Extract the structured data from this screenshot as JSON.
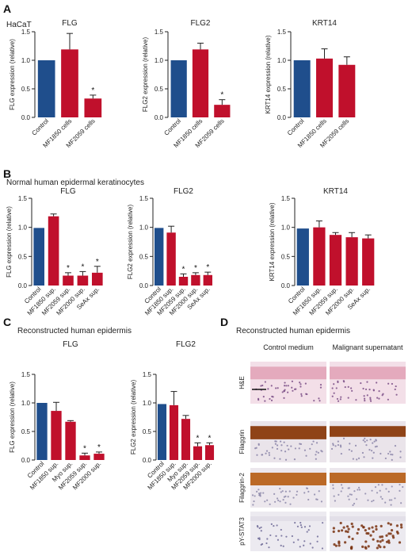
{
  "panels": [
    {
      "letter": "A",
      "subtitle": "HaCaT"
    },
    {
      "letter": "B",
      "subtitle": "Normal human epidermal keratinocytes"
    },
    {
      "letter": "C",
      "subtitle": "Reconstructed human epidermis"
    },
    {
      "letter": "D",
      "subtitle": "Reconstructed human epidermis"
    }
  ],
  "colors": {
    "control": "#1f4e8c",
    "treated": "#c0102c",
    "error": "#222222"
  },
  "chart_data": [
    {
      "id": "A1",
      "panel": "A",
      "type": "bar",
      "title": "FLG",
      "ylabel": "FLG expression (relative)",
      "ylim": [
        0,
        1.5
      ],
      "yticks": [
        "0.0",
        "0.5",
        "1.0",
        "1.5"
      ],
      "categories": [
        "Control",
        "MF1850 cells",
        "MF2059 cells"
      ],
      "values": [
        1.0,
        1.19,
        0.33
      ],
      "errors": [
        0,
        0.28,
        0.06
      ],
      "significant": [
        false,
        false,
        true
      ]
    },
    {
      "id": "A2",
      "panel": "A",
      "type": "bar",
      "title": "FLG2",
      "ylabel": "FLG2 expression (relative)",
      "ylim": [
        0,
        1.5
      ],
      "yticks": [
        "0.0",
        "0.5",
        "1.0",
        "1.5"
      ],
      "categories": [
        "Control",
        "MF1850 cells",
        "MF2059 cells"
      ],
      "values": [
        1.0,
        1.19,
        0.22
      ],
      "errors": [
        0,
        0.11,
        0.09
      ],
      "significant": [
        false,
        false,
        true
      ]
    },
    {
      "id": "A3",
      "panel": "A",
      "type": "bar",
      "title": "KRT14",
      "ylabel": "KRT14 expression (relative)",
      "ylim": [
        0,
        1.5
      ],
      "yticks": [
        "0.0",
        "0.5",
        "1.0",
        "1.5"
      ],
      "categories": [
        "Control",
        "MF1850 cells",
        "MF2059 cells"
      ],
      "values": [
        1.0,
        1.03,
        0.92
      ],
      "errors": [
        0,
        0.17,
        0.14
      ],
      "significant": [
        false,
        false,
        false
      ]
    },
    {
      "id": "B1",
      "panel": "B",
      "type": "bar",
      "title": "FLG",
      "ylabel": "FLG expression (relative)",
      "ylim": [
        0,
        1.5
      ],
      "yticks": [
        "0.0",
        "0.5",
        "1.0",
        "1.5"
      ],
      "categories": [
        "Control",
        "MF1850 sup.",
        "MF2059 sup.",
        "MF2000 sup.",
        "SeAx sup."
      ],
      "values": [
        0.99,
        1.19,
        0.17,
        0.17,
        0.22
      ],
      "errors": [
        0,
        0.04,
        0.05,
        0.07,
        0.11
      ],
      "significant": [
        false,
        false,
        true,
        true,
        true
      ]
    },
    {
      "id": "B2",
      "panel": "B",
      "type": "bar",
      "title": "FLG2",
      "ylabel": "FLG2 expression (relative)",
      "ylim": [
        0,
        1.5
      ],
      "yticks": [
        "0.0",
        "0.5",
        "1.0",
        "1.5"
      ],
      "categories": [
        "Control",
        "MF1850 sup.",
        "MF2059 sup.",
        "MF2000 sup.",
        "SeAx sup."
      ],
      "values": [
        0.99,
        0.91,
        0.15,
        0.18,
        0.18
      ],
      "errors": [
        0,
        0.11,
        0.05,
        0.04,
        0.05
      ],
      "significant": [
        false,
        false,
        true,
        true,
        true
      ]
    },
    {
      "id": "B3",
      "panel": "B",
      "type": "bar",
      "title": "KRT14",
      "ylabel": "KRT14 expression (relative)",
      "ylim": [
        0,
        1.5
      ],
      "yticks": [
        "0.0",
        "0.5",
        "1.0",
        "1.5"
      ],
      "categories": [
        "Control",
        "MF1850 sup.",
        "MF2059 sup.",
        "MF2000 sup.",
        "SeAx sup."
      ],
      "values": [
        0.98,
        1.0,
        0.87,
        0.83,
        0.81
      ],
      "errors": [
        0,
        0.11,
        0.04,
        0.08,
        0.06
      ],
      "significant": [
        false,
        false,
        false,
        false,
        false
      ]
    },
    {
      "id": "C1",
      "panel": "C",
      "type": "bar",
      "title": "FLG",
      "ylabel": "FLG expression (relative)",
      "ylim": [
        0,
        1.5
      ],
      "yticks": [
        "0.0",
        "0.5",
        "1.0",
        "1.5"
      ],
      "categories": [
        "Control",
        "MF1850 sup.",
        "Myo sup.",
        "MF2059 sup.",
        "MF2000 sup."
      ],
      "values": [
        1.0,
        0.86,
        0.67,
        0.08,
        0.11
      ],
      "errors": [
        0,
        0.15,
        0.02,
        0.04,
        0.03
      ],
      "significant": [
        false,
        false,
        false,
        true,
        true
      ]
    },
    {
      "id": "C2",
      "panel": "C",
      "type": "bar",
      "title": "FLG2",
      "ylabel": "FLG2 expression (relative)",
      "ylim": [
        0,
        1.5
      ],
      "yticks": [
        "0.0",
        "0.5",
        "1.0",
        "1.5"
      ],
      "categories": [
        "Control",
        "MF1850 sup.",
        "Myo sup.",
        "MF2059 sup.",
        "MF2000 sup."
      ],
      "values": [
        0.98,
        0.96,
        0.72,
        0.24,
        0.26
      ],
      "errors": [
        0,
        0.24,
        0.06,
        0.06,
        0.04
      ],
      "significant": [
        false,
        false,
        false,
        true,
        true
      ]
    }
  ],
  "histology": {
    "columns": [
      "Control medium",
      "Malignant supernatant"
    ],
    "rows": [
      {
        "label": "H&E",
        "top": "#e3a7ba",
        "base": "#f3dfe8",
        "dots": "#7a4e86"
      },
      {
        "label": "Filaggrin",
        "top": "#8a3a0c",
        "base": "#eae4ea",
        "dots": "#8a84a8"
      },
      {
        "label": "Filaggrin-2",
        "top": "#b8621c",
        "base": "#ece7ed",
        "dots": "#8e8aaa"
      },
      {
        "label": "pY-STAT3",
        "top": "#d7d4df",
        "base": "#eceaf0",
        "dots": "#6e6a96"
      }
    ],
    "stat3_treated_dots": "#7a3210"
  }
}
